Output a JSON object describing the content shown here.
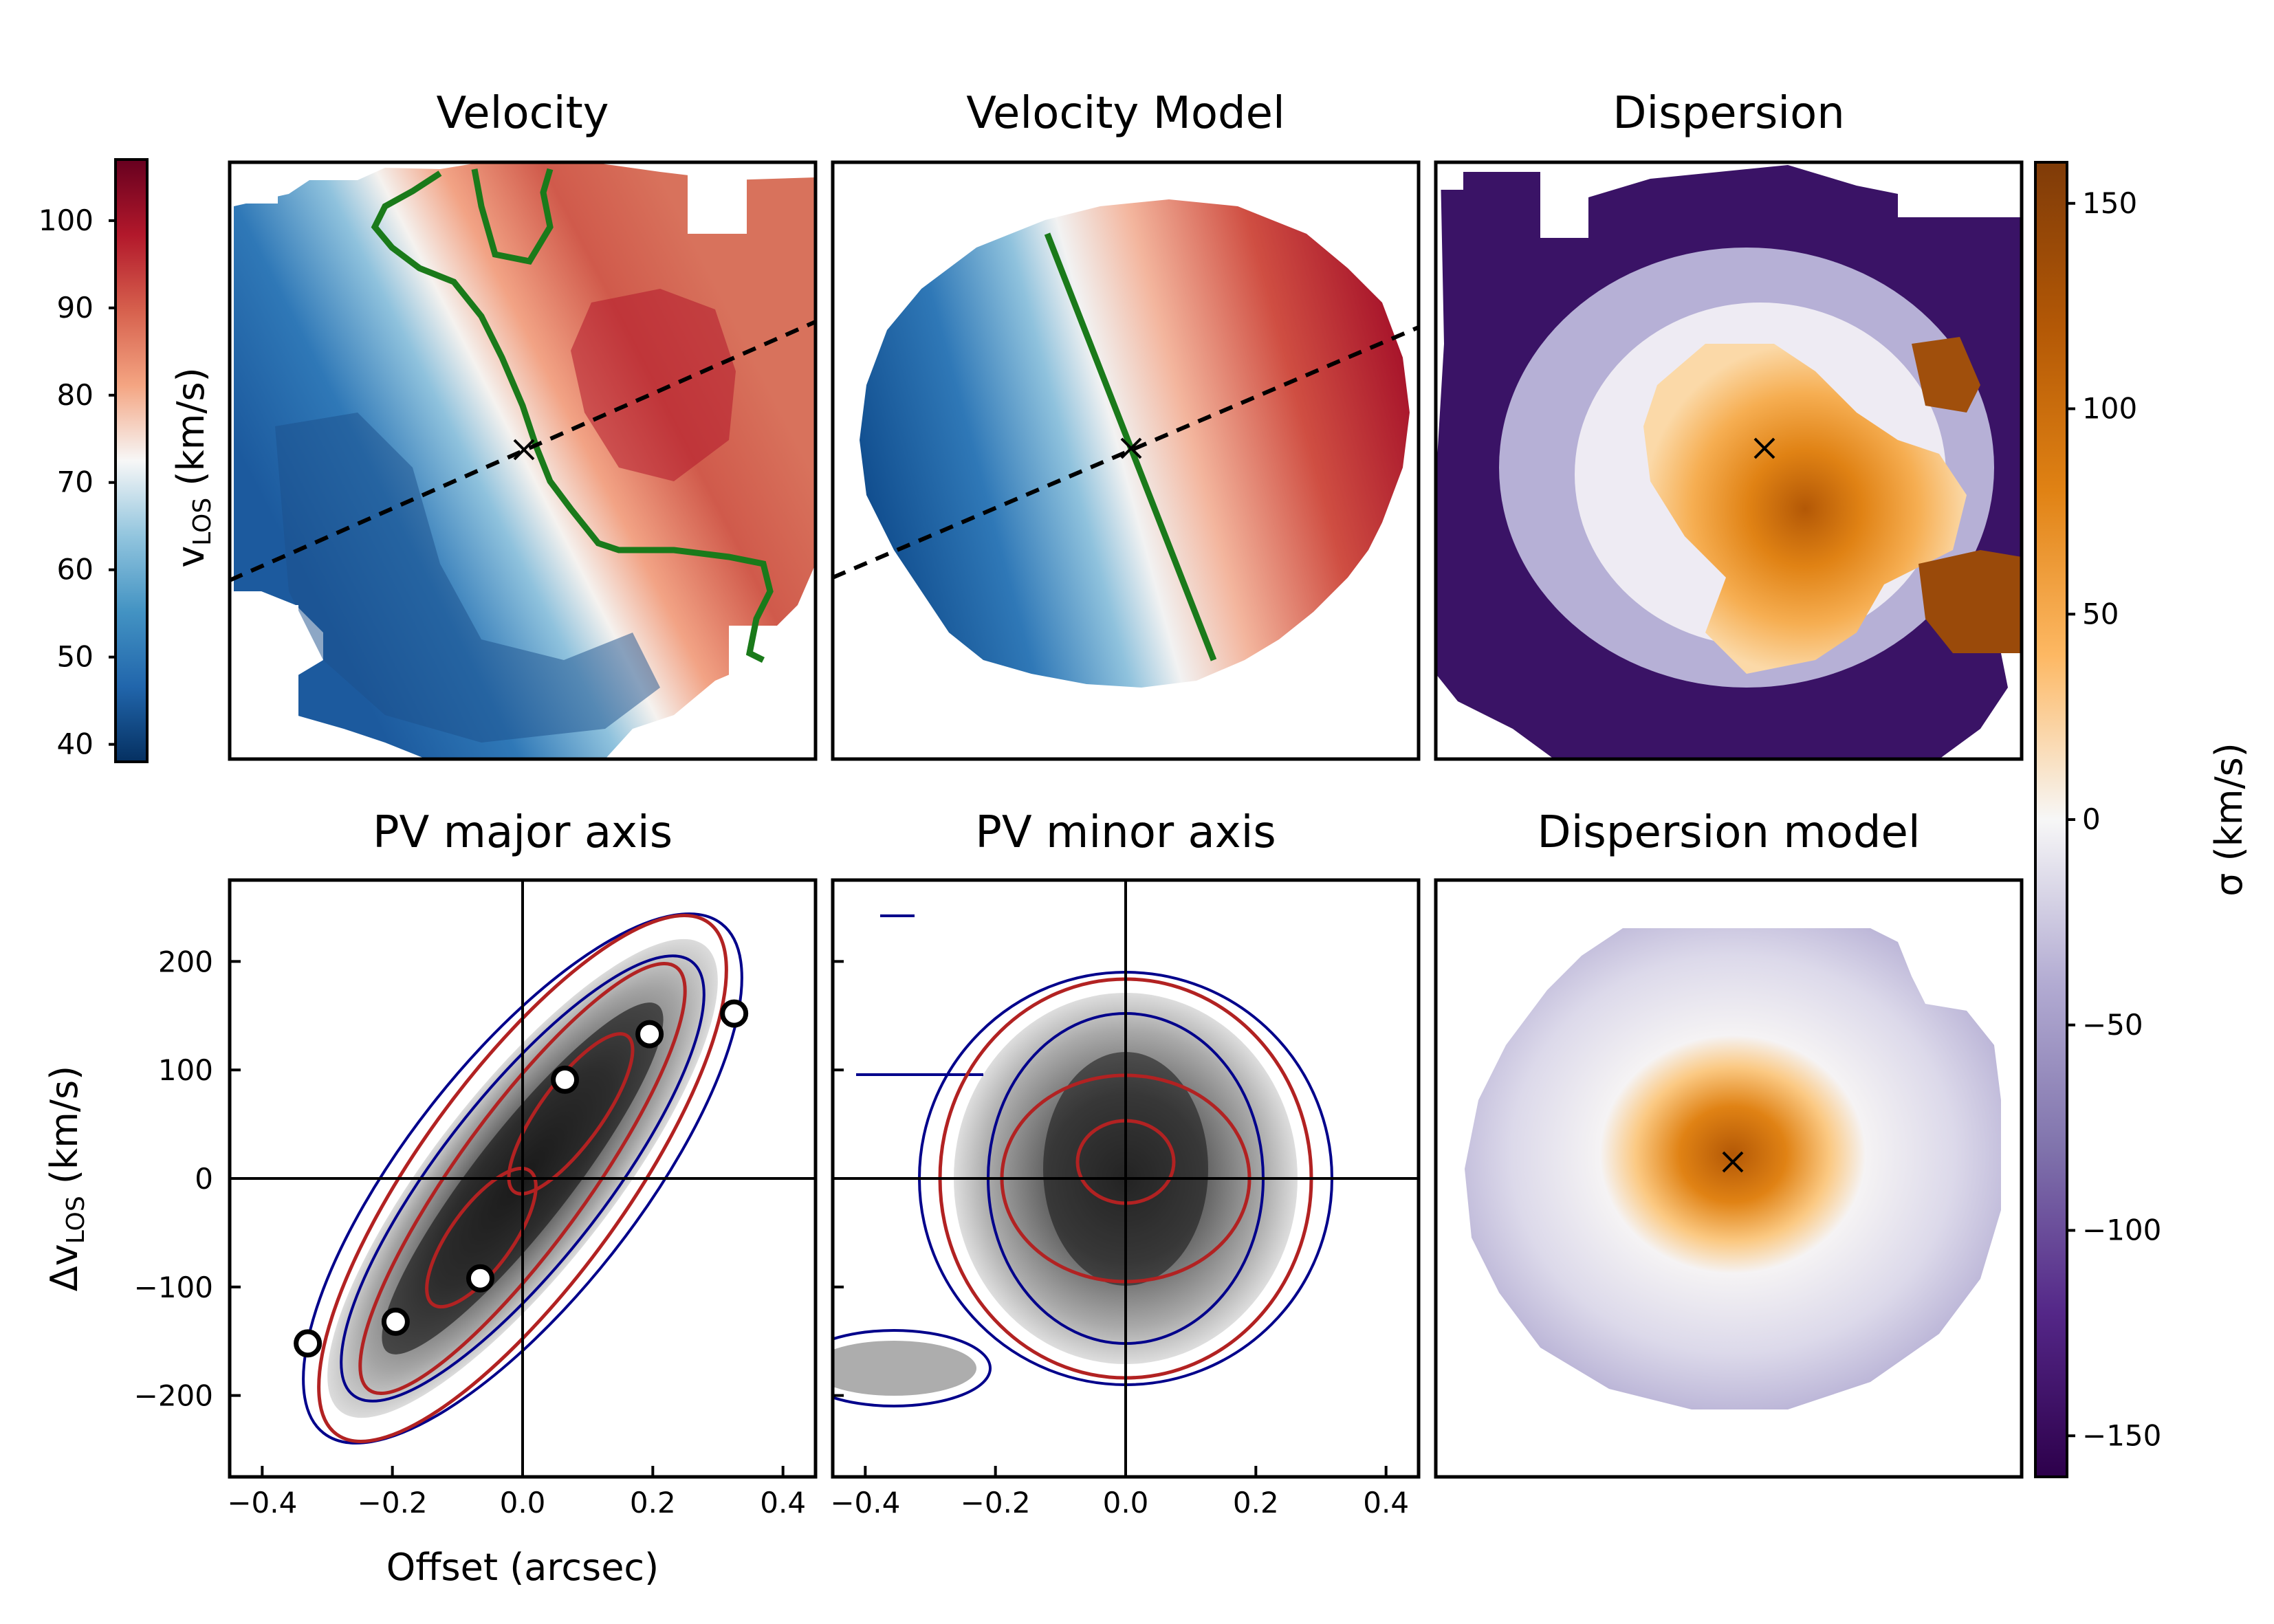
{
  "figure": {
    "panels": [
      {
        "id": "velocity",
        "title": "Velocity"
      },
      {
        "id": "velocity_model",
        "title": "Velocity Model"
      },
      {
        "id": "dispersion",
        "title": "Dispersion"
      },
      {
        "id": "pv_major",
        "title": "PV major axis"
      },
      {
        "id": "pv_minor",
        "title": "PV minor axis"
      },
      {
        "id": "dispersion_model",
        "title": "Dispersion model"
      }
    ],
    "velocity_colorbar": {
      "label": "v",
      "label_sub": "LOS",
      "label_unit": " (km/s)",
      "ticks": [
        "40",
        "50",
        "60",
        "70",
        "80",
        "90",
        "100"
      ],
      "range": [
        38,
        107
      ],
      "colormap": "RdBu_r",
      "colors": [
        "#053061",
        "#2166ac",
        "#4393c3",
        "#92c5de",
        "#f7f7f7",
        "#f4a582",
        "#d6604d",
        "#b2182b",
        "#67001f"
      ]
    },
    "dispersion_colorbar": {
      "label": "σ (km/s)",
      "ticks": [
        "150",
        "100",
        "50",
        "0",
        "−50",
        "−100",
        "−150"
      ],
      "range": [
        -160,
        160
      ],
      "colormap": "PuOr_r",
      "colors": [
        "#2d004b",
        "#542788",
        "#8073ac",
        "#b2abd2",
        "#f7f7f7",
        "#fdb863",
        "#e08214",
        "#b35806",
        "#7f3b08"
      ]
    },
    "pv_axes": {
      "ylabel": "Δv",
      "ylabel_sub": "LOS",
      "ylabel_unit": " (km/s)",
      "xlabel": "Offset (arcsec)",
      "yticks": [
        "200",
        "100",
        "0",
        "−100",
        "−200"
      ],
      "xticks": [
        "−0.4",
        "−0.2",
        "0.0",
        "0.2",
        "0.4"
      ],
      "xlim": [
        -0.45,
        0.45
      ],
      "ylim": [
        -275,
        275
      ]
    },
    "colors": {
      "model_contour": "#b22222",
      "data_contour": "#00008b",
      "kinematic_line": "#1a7a1a",
      "major_axis_line": "#000000"
    }
  },
  "chart_data": [
    {
      "type": "heatmap",
      "panel": "velocity",
      "title": "Velocity",
      "colorbar_label": "v_LOS (km/s)",
      "vlim": [
        38,
        107
      ],
      "center_marker": "x",
      "overlays": [
        "zero-velocity contour (green)",
        "major axis (black dashed)"
      ]
    },
    {
      "type": "heatmap",
      "panel": "velocity_model",
      "title": "Velocity Model",
      "vlim": [
        38,
        107
      ],
      "center_marker": "x",
      "overlays": [
        "zero-velocity line (green)",
        "major axis (black dashed)"
      ]
    },
    {
      "type": "heatmap",
      "panel": "dispersion",
      "title": "Dispersion",
      "colorbar_label": "σ (km/s)",
      "vlim": [
        -160,
        160
      ],
      "center_marker": "x"
    },
    {
      "type": "heatmap",
      "panel": "pv_major",
      "title": "PV major axis",
      "xlabel": "Offset (arcsec)",
      "ylabel": "Δv_LOS (km/s)",
      "xlim": [
        -0.45,
        0.45
      ],
      "ylim": [
        -275,
        275
      ],
      "series": [
        {
          "values": [
            {
              "x": -0.33,
              "y": -152
            },
            {
              "x": -0.195,
              "y": -132
            },
            {
              "x": -0.065,
              "y": -92
            },
            {
              "x": 0.065,
              "y": 91
            },
            {
              "x": 0.195,
              "y": 133
            },
            {
              "x": 0.325,
              "y": 152
            }
          ]
        }
      ]
    },
    {
      "type": "heatmap",
      "panel": "pv_minor",
      "title": "PV minor axis",
      "xlim": [
        -0.45,
        0.45
      ],
      "ylim": [
        -275,
        275
      ]
    },
    {
      "type": "heatmap",
      "panel": "dispersion_model",
      "title": "Dispersion model",
      "vlim": [
        -160,
        160
      ],
      "center_marker": "x"
    }
  ]
}
